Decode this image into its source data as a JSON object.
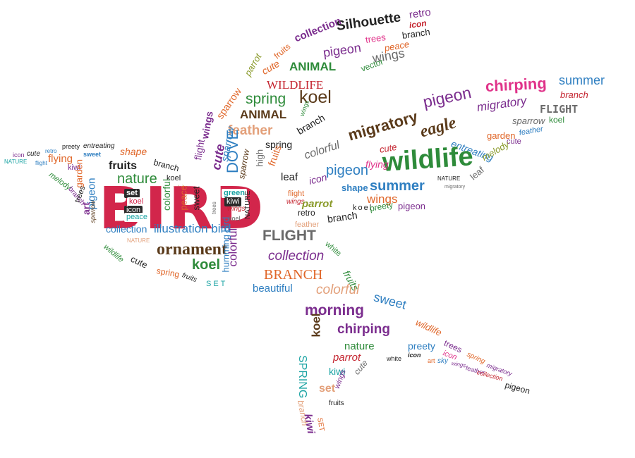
{
  "words": {
    "bird": "BIRD",
    "silhouette": "Silhouette",
    "retro": "retro",
    "icon": "icon",
    "collection": "collection",
    "branch": "branch",
    "fruits": "fruits",
    "pigeon": "pigeon",
    "trees": "trees",
    "peace": "peace",
    "wings": "wings",
    "vector": "vector",
    "animal": "ANIMAL",
    "animal_caps": "ANIMAL",
    "parrot": "parrot",
    "cute": "cute",
    "wildlife": "WILDLIFE",
    "sparrow": "sparrow",
    "spring": "spring",
    "koel": "koel",
    "feather": "feather",
    "flight": "flight",
    "dove": "DOVE",
    "chirping": "chirping",
    "summer": "summer",
    "migratory": "migratory",
    "eagle": "eagle",
    "flight_caps": "FLIGHT",
    "garden": "garden",
    "entreating": "entreating",
    "melody": "melody",
    "wildlife_lower": "wildlife",
    "colorful": "colorful",
    "flying": "flying",
    "leaf": "leaf",
    "nature": "nature",
    "shape": "shape",
    "preety": "preety",
    "kiwi": "kiwi",
    "sweet": "sweet",
    "nature_caps": "NATURE",
    "set": "set",
    "art": "art",
    "illustration_bird": "illustration bird",
    "ornament": "ornament",
    "collection2": "collection",
    "branch_caps": "BRANCH",
    "beautiful": "beautiful",
    "morning": "morning",
    "spring_caps": "SPRING",
    "humming_bird": "humming bird",
    "white": "white",
    "green": "green",
    "high": "high",
    "set_caps": "SET",
    "sky": "sky"
  },
  "colors": {
    "bird": "#d2264b",
    "purple": "#7b2d8e",
    "green": "#2e8b3a",
    "orange": "#e0672a",
    "blue": "#2f7fc1",
    "brown": "#5a3a1a",
    "pink": "#e0338a",
    "teal": "#1aa3a3",
    "olive": "#8a9a2a",
    "gray": "#6a6a6a",
    "dark": "#222222",
    "red": "#c4242f"
  }
}
